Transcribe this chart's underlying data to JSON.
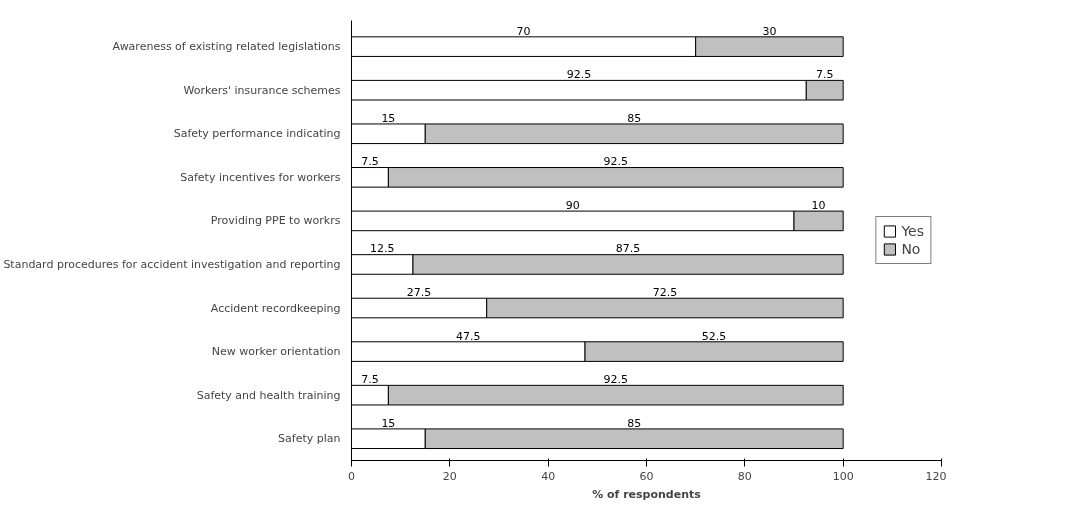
{
  "chart_data": {
    "type": "bar",
    "orientation": "horizontal",
    "stacked": true,
    "xlabel": "% of respondents",
    "categories": [
      "Awareness of existing related legislations",
      "Workers' insurance schemes",
      "Safety performance indicating",
      "Safety incentives for workers",
      "Providing PPE to workrs",
      "Standard procedures for accident investigation and reporting",
      "Accident recordkeeping",
      "New worker orientation",
      "Safety and health training",
      "Safety plan"
    ],
    "series": [
      {
        "name": "Yes",
        "color": "#ffffff",
        "values": [
          70,
          92.5,
          15,
          7.5,
          90,
          12.5,
          27.5,
          47.5,
          7.5,
          15
        ]
      },
      {
        "name": "No",
        "color": "#c0c0c0",
        "values": [
          30,
          7.5,
          85,
          92.5,
          10,
          87.5,
          72.5,
          52.5,
          92.5,
          85
        ]
      }
    ],
    "xlim": [
      0,
      120
    ],
    "xticks": [
      0,
      20,
      40,
      60,
      80,
      100,
      120
    ],
    "data_labels": true,
    "grid": false,
    "legend": "right"
  }
}
